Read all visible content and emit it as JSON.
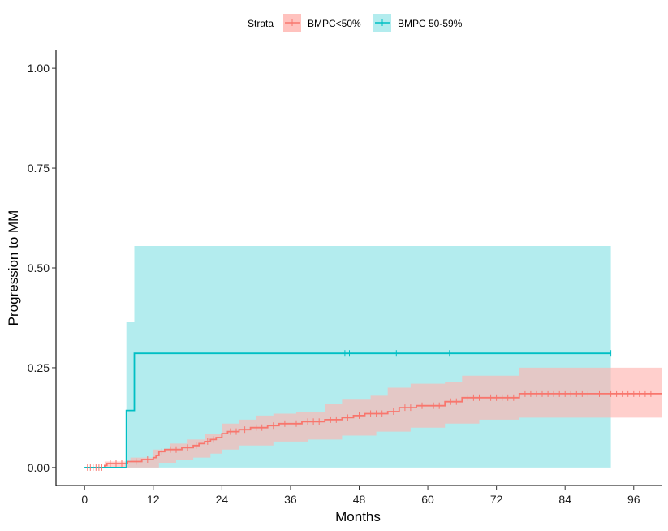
{
  "chart_data": {
    "type": "line",
    "subtype": "cumulative-incidence-step",
    "xlabel": "Months",
    "ylabel": "Progression to MM",
    "xlim": [
      -5,
      101
    ],
    "ylim": [
      -0.045,
      1.045
    ],
    "xticks": [
      0,
      12,
      24,
      36,
      48,
      60,
      72,
      84,
      96
    ],
    "xtick_labels": [
      "0",
      "12",
      "24",
      "36",
      "48",
      "60",
      "72",
      "84",
      "96"
    ],
    "yticks": [
      0.0,
      0.25,
      0.5,
      0.75,
      1.0
    ],
    "ytick_labels": [
      "0.00",
      "0.25",
      "0.50",
      "0.75",
      "1.00"
    ],
    "legend": {
      "title": "Strata",
      "position": "top",
      "entries": [
        "BMPC<50%",
        "BMPC 50-59%"
      ]
    },
    "series": [
      {
        "name": "BMPC<50%",
        "color": "#F8766D",
        "ci_color": "#FFB6B0",
        "steps": [
          [
            0,
            0.0
          ],
          [
            3.5,
            0.005
          ],
          [
            3.9,
            0.01
          ],
          [
            7.5,
            0.015
          ],
          [
            10,
            0.02
          ],
          [
            12,
            0.025
          ],
          [
            12.5,
            0.03
          ],
          [
            13,
            0.04
          ],
          [
            14,
            0.045
          ],
          [
            17,
            0.05
          ],
          [
            19,
            0.055
          ],
          [
            20,
            0.06
          ],
          [
            21,
            0.065
          ],
          [
            22,
            0.07
          ],
          [
            23,
            0.075
          ],
          [
            24,
            0.085
          ],
          [
            25,
            0.09
          ],
          [
            27,
            0.095
          ],
          [
            29,
            0.1
          ],
          [
            32,
            0.105
          ],
          [
            34,
            0.11
          ],
          [
            38,
            0.115
          ],
          [
            42,
            0.12
          ],
          [
            45,
            0.125
          ],
          [
            47,
            0.13
          ],
          [
            49,
            0.135
          ],
          [
            53,
            0.14
          ],
          [
            55,
            0.15
          ],
          [
            58,
            0.155
          ],
          [
            63,
            0.165
          ],
          [
            66,
            0.175
          ],
          [
            76,
            0.185
          ],
          [
            101,
            0.185
          ]
        ],
        "lower": [
          [
            0,
            0.0
          ],
          [
            8,
            0.0
          ],
          [
            13,
            0.012
          ],
          [
            16,
            0.02
          ],
          [
            19,
            0.025
          ],
          [
            22,
            0.035
          ],
          [
            24,
            0.045
          ],
          [
            27,
            0.055
          ],
          [
            33,
            0.065
          ],
          [
            39,
            0.07
          ],
          [
            45,
            0.08
          ],
          [
            51,
            0.09
          ],
          [
            57,
            0.1
          ],
          [
            63,
            0.11
          ],
          [
            69,
            0.12
          ],
          [
            76,
            0.125
          ],
          [
            101,
            0.125
          ]
        ],
        "upper": [
          [
            0,
            0.0
          ],
          [
            3.5,
            0.015
          ],
          [
            8,
            0.025
          ],
          [
            12,
            0.045
          ],
          [
            15,
            0.06
          ],
          [
            18,
            0.07
          ],
          [
            21,
            0.085
          ],
          [
            24,
            0.11
          ],
          [
            27,
            0.12
          ],
          [
            30,
            0.13
          ],
          [
            33,
            0.135
          ],
          [
            37,
            0.14
          ],
          [
            42,
            0.16
          ],
          [
            45,
            0.17
          ],
          [
            50,
            0.18
          ],
          [
            53,
            0.2
          ],
          [
            57,
            0.21
          ],
          [
            63,
            0.215
          ],
          [
            66,
            0.23
          ],
          [
            76,
            0.25
          ],
          [
            101,
            0.25
          ]
        ],
        "censor_times": [
          0.5,
          1,
          1.5,
          2,
          2.5,
          3,
          4.5,
          5.5,
          6.5,
          9,
          11,
          13.5,
          15,
          16,
          18,
          19.5,
          21.5,
          22.5,
          25.5,
          26.5,
          28,
          30,
          31,
          33,
          35,
          37,
          39,
          40,
          41,
          43,
          44,
          46,
          48,
          50,
          51,
          52,
          54,
          56,
          57,
          59,
          61,
          62,
          64,
          65,
          67,
          68,
          69,
          70,
          71,
          72,
          73,
          74,
          75,
          77,
          78,
          79,
          80,
          81,
          82,
          83,
          84,
          85,
          86,
          87,
          88,
          90,
          92,
          93,
          94,
          95,
          96,
          97,
          98,
          99
        ]
      },
      {
        "name": "BMPC 50-59%",
        "color": "#00BFC4",
        "ci_color": "#B3ECEE",
        "steps": [
          [
            0,
            0.0
          ],
          [
            7.3,
            0.143
          ],
          [
            8.7,
            0.286
          ],
          [
            92,
            0.286
          ]
        ],
        "lower": [
          [
            0,
            0.0
          ],
          [
            92,
            0.0
          ]
        ],
        "upper": [
          [
            0,
            0.0
          ],
          [
            7.3,
            0.365
          ],
          [
            8.7,
            0.555
          ],
          [
            92,
            0.555
          ]
        ],
        "censor_times": [
          45.5,
          46.3,
          54.5,
          63.8,
          92
        ]
      }
    ]
  }
}
